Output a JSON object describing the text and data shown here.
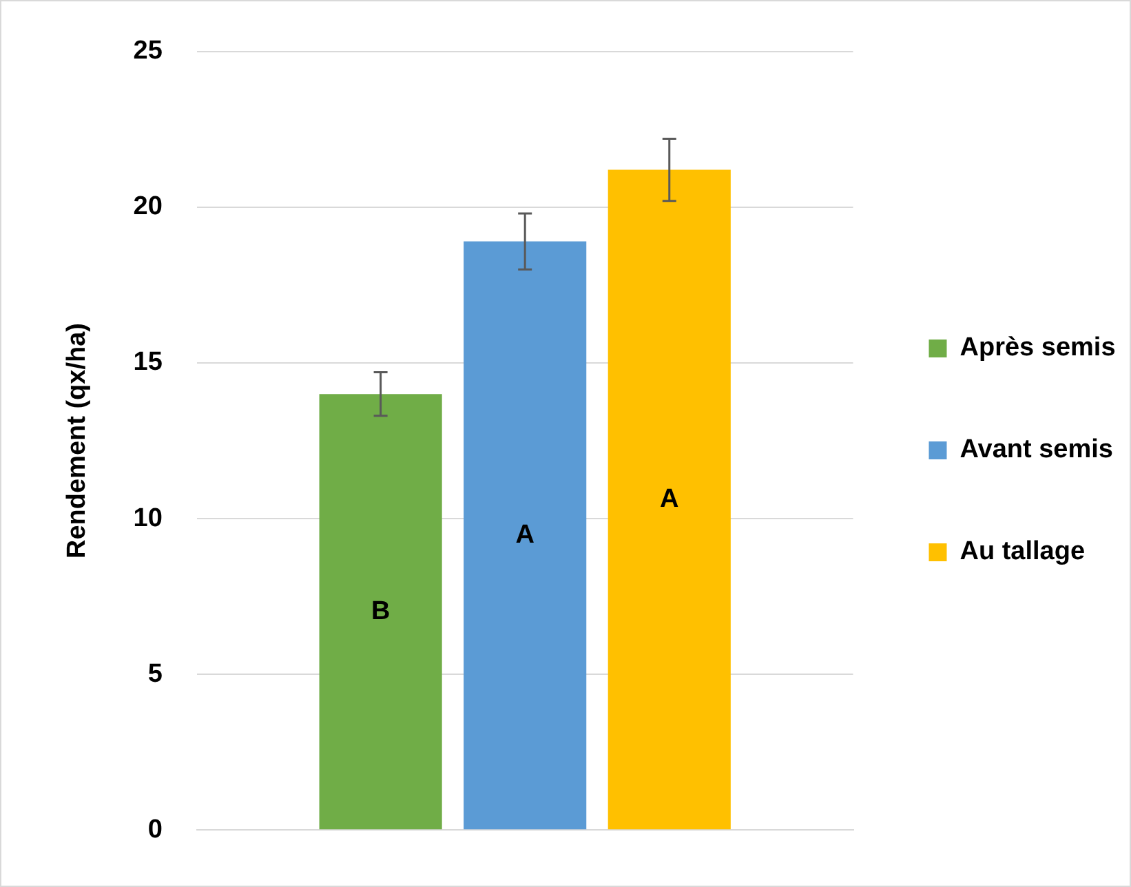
{
  "chart_data": {
    "type": "bar",
    "ylabel": "Rendement (qx/ha)",
    "categories": [
      null
    ],
    "series": [
      {
        "name": "Après semis",
        "color": "#70ad47",
        "values": [
          14.0
        ],
        "errors": [
          0.7
        ],
        "value_labels": [
          "B"
        ]
      },
      {
        "name": "Avant semis",
        "color": "#5b9bd5",
        "values": [
          18.9
        ],
        "errors": [
          0.9
        ],
        "value_labels": [
          "A"
        ]
      },
      {
        "name": "Au tallage",
        "color": "#ffc000",
        "values": [
          21.2
        ],
        "errors": [
          1.0
        ],
        "value_labels": [
          "A"
        ]
      }
    ],
    "ylim": [
      0,
      25
    ],
    "yticks": [
      0,
      5,
      10,
      15,
      20,
      25
    ],
    "grid": "y",
    "legend": "right"
  }
}
